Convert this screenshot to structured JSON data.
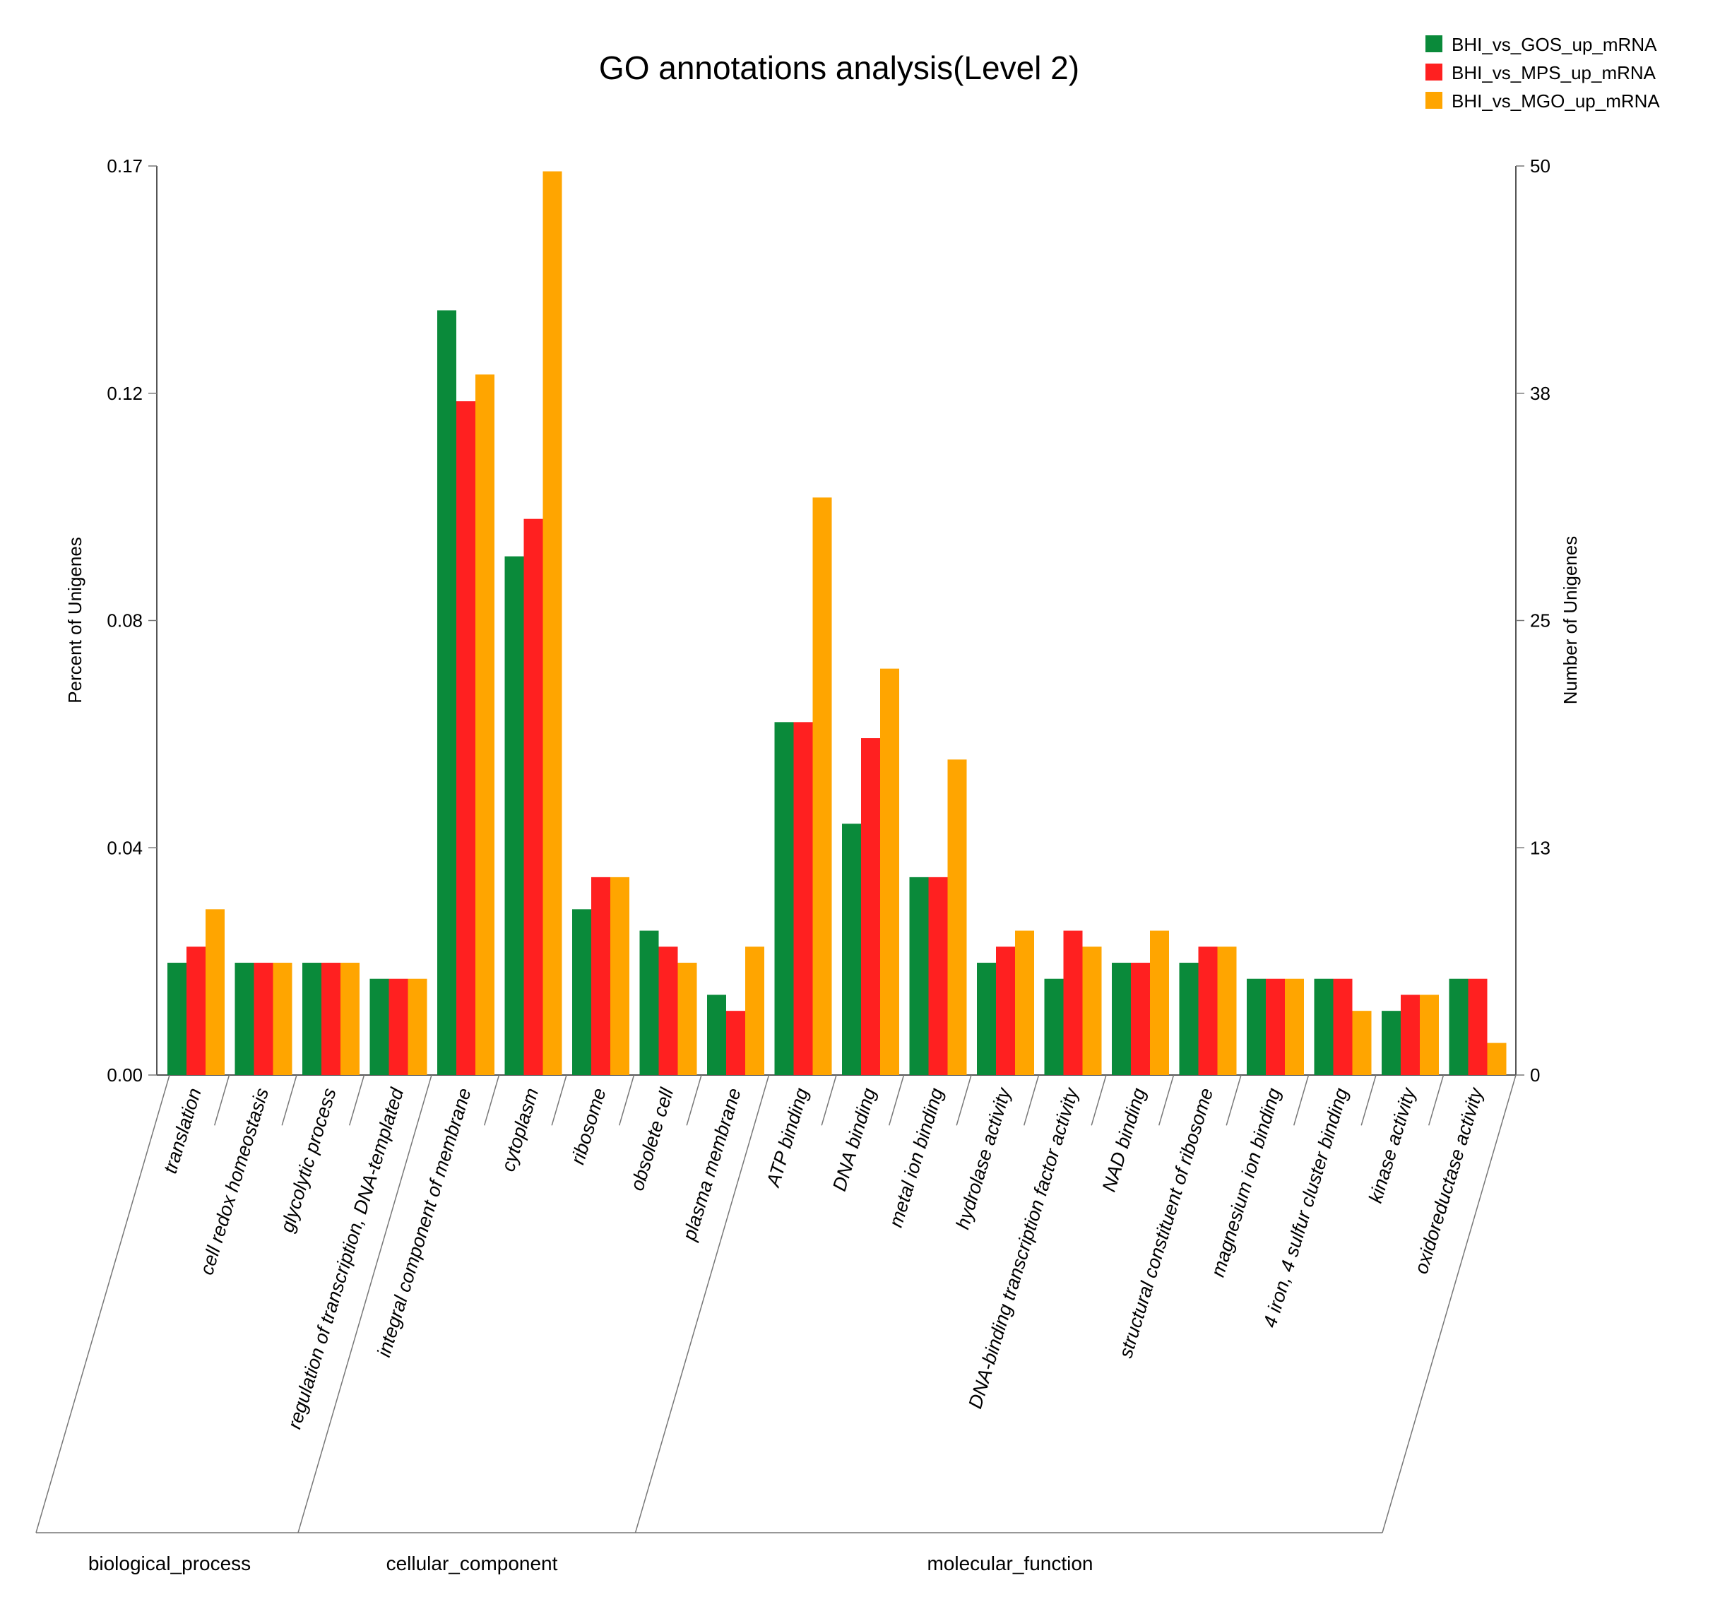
{
  "chart_data": {
    "type": "bar",
    "title": "GO annotations analysis(Level 2)",
    "ylabel": "Percent of Unigenes",
    "y2label": "Number of Unigenes",
    "ylim": [
      0,
      0.17
    ],
    "y2lim": [
      0,
      50
    ],
    "yticks": [
      "0.00",
      "0.04",
      "0.08",
      "0.12",
      "0.17"
    ],
    "y2ticks": [
      "0",
      "13",
      "25",
      "38",
      "50"
    ],
    "legend_position": "top-right",
    "categories": [
      "translation",
      "cell redox homeostasis",
      "glycolytic process",
      "regulation of transcription, DNA-templated",
      "integral component of membrane",
      "cytoplasm",
      "ribosome",
      "obsolete cell",
      "plasma membrane",
      "ATP binding",
      "DNA binding",
      "metal ion binding",
      "hydrolase activity",
      "DNA-binding transcription factor activity",
      "NAD binding",
      "structural constituent of ribosome",
      "magnesium ion binding",
      "4 iron, 4 sulfur cluster binding",
      "kinase activity",
      "oxidoreductase activity"
    ],
    "groups": [
      {
        "name": "biological_process",
        "start": 0,
        "end": 3
      },
      {
        "name": "cellular_component",
        "start": 4,
        "end": 8
      },
      {
        "name": "molecular_function",
        "start": 9,
        "end": 19
      }
    ],
    "series": [
      {
        "name": "BHI_vs_GOS_up_mRNA",
        "color": "#0a8a3a",
        "values": [
          0.021,
          0.021,
          0.021,
          0.018,
          0.143,
          0.097,
          0.031,
          0.027,
          0.015,
          0.066,
          0.047,
          0.037,
          0.021,
          0.018,
          0.021,
          0.021,
          0.018,
          0.018,
          0.012,
          0.018
        ]
      },
      {
        "name": "BHI_vs_MPS_up_mRNA",
        "color": "#ff2020",
        "values": [
          0.024,
          0.021,
          0.021,
          0.018,
          0.126,
          0.104,
          0.037,
          0.024,
          0.012,
          0.066,
          0.063,
          0.037,
          0.024,
          0.027,
          0.021,
          0.024,
          0.018,
          0.018,
          0.015,
          0.018
        ]
      },
      {
        "name": "BHI_vs_MGO_up_mRNA",
        "color": "#ffa500",
        "values": [
          0.031,
          0.021,
          0.021,
          0.018,
          0.131,
          0.169,
          0.037,
          0.021,
          0.024,
          0.108,
          0.076,
          0.059,
          0.027,
          0.024,
          0.027,
          0.024,
          0.018,
          0.012,
          0.015,
          0.006
        ]
      }
    ]
  }
}
